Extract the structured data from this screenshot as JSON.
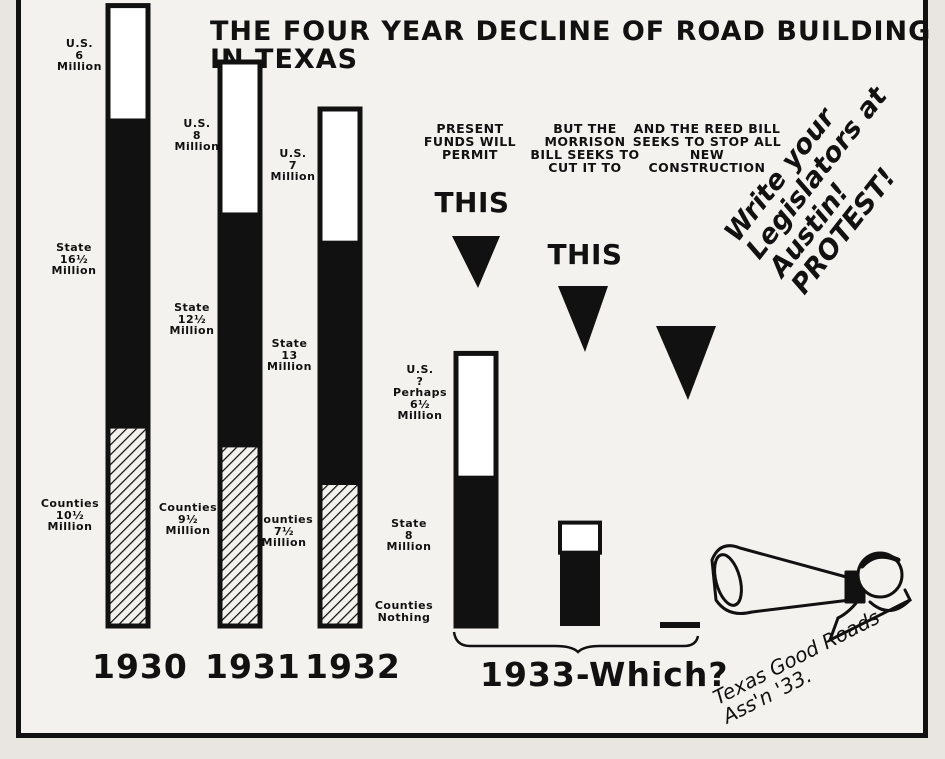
{
  "chart_data": {
    "type": "bar",
    "stacked": true,
    "title": "The Four Year Decline of Road Building in Texas",
    "units": "Million",
    "categories": [
      "1930",
      "1931",
      "1932",
      "1933-Which?"
    ],
    "series": [
      {
        "name": "Counties",
        "values": [
          10.5,
          9.5,
          7.5,
          0
        ],
        "pattern": "hatched"
      },
      {
        "name": "State",
        "values": [
          16.5,
          12.5,
          13,
          8
        ],
        "color": "#111111"
      },
      {
        "name": "U.S.",
        "values": [
          6,
          8,
          7,
          6.5
        ],
        "color": "#ffffff"
      }
    ],
    "bar_labels": [
      {
        "us": "U.S.\n6\nMillion",
        "state": "State\n16½\nMillion",
        "counties": "Counties\n10½\nMillion"
      },
      {
        "us": "U.S.\n8\nMillion",
        "state": "State\n12½\nMillion",
        "counties": "Counties\n9½\nMillion"
      },
      {
        "us": "U.S.\n7\nMillion",
        "state": "State\n13\nMillion",
        "counties": "Counties\n7½\nMillion"
      },
      {
        "us": "U.S.\n?\nPerhaps\n6½\nMillion",
        "state": "State\n8\nMillion",
        "counties": "Counties\nNothing"
      }
    ],
    "scenarios_1933": [
      {
        "caption": "Present Funds Will Permit",
        "emphasis": "THIS",
        "total": 14.5
      },
      {
        "caption": "But the Morrison Bill Seeks To Cut It To",
        "emphasis": "THIS",
        "total": 5.5
      },
      {
        "caption": "And The Reed Bill Seeks to Stop ALL New Construction",
        "emphasis": "",
        "total": 0
      }
    ],
    "annotations": [
      "Write your Legislators at Austin! PROTEST!"
    ],
    "credit": "Texas Good Roads Ass'n '33."
  },
  "colors": {
    "ink": "#111111",
    "paper": "#f4f2ee",
    "us_fill": "#ffffff"
  },
  "icons": [
    "megaphone-icon",
    "down-arrow-icon"
  ]
}
